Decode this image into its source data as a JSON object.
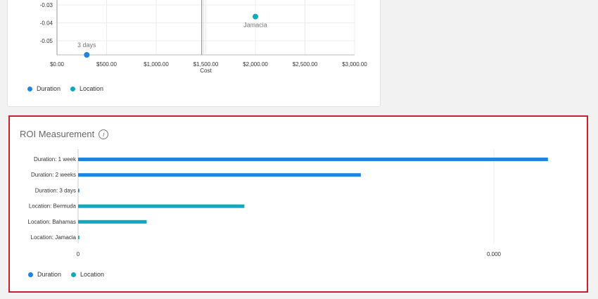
{
  "colors": {
    "duration": "#1f83e0",
    "location": "#0fa8bd",
    "highlight_border": "#c8202f"
  },
  "chart_data": [
    {
      "type": "scatter",
      "xlabel": "Cost",
      "ylabel": "",
      "x_ticks": [
        "$0.00",
        "$500.00",
        "$1,000.00",
        "$1,500.00",
        "$2,000.00",
        "$2,500.00",
        "$3,000.00"
      ],
      "y_ticks": [
        "-0.03",
        "-0.04",
        "-0.05"
      ],
      "xlim": [
        0,
        3000
      ],
      "ylim": [
        -0.058,
        -0.03
      ],
      "grid": true,
      "legend": "bottom-left",
      "reference_line_x": 1480,
      "series": [
        {
          "name": "Duration",
          "points": [
            {
              "x": 300,
              "y": -0.058,
              "label": "3 days"
            }
          ]
        },
        {
          "name": "Location",
          "points": [
            {
              "x": 2000,
              "y": -0.0365,
              "label": "Jamacia"
            }
          ]
        }
      ]
    },
    {
      "type": "bar",
      "orientation": "horizontal",
      "title": "ROI Measurement",
      "categories": [
        "Duration: 1 week",
        "Duration: 2 weeks",
        "Duration: 3 days",
        "Location: Bermuda",
        "Location: Bahamas",
        "Location: Jamacia"
      ],
      "series_of_category": [
        "Duration",
        "Duration",
        "Duration",
        "Location",
        "Location",
        "Location"
      ],
      "values": [
        1.13,
        0.68,
        0.003,
        0.4,
        0.165,
        0.003
      ],
      "x_ticks": [
        {
          "value": 0,
          "label": "0"
        },
        {
          "value": 1,
          "label": "0.000"
        }
      ],
      "xlim": [
        0,
        1.2
      ],
      "grid": true,
      "legend": "bottom-left",
      "series_names": [
        "Duration",
        "Location"
      ]
    }
  ]
}
